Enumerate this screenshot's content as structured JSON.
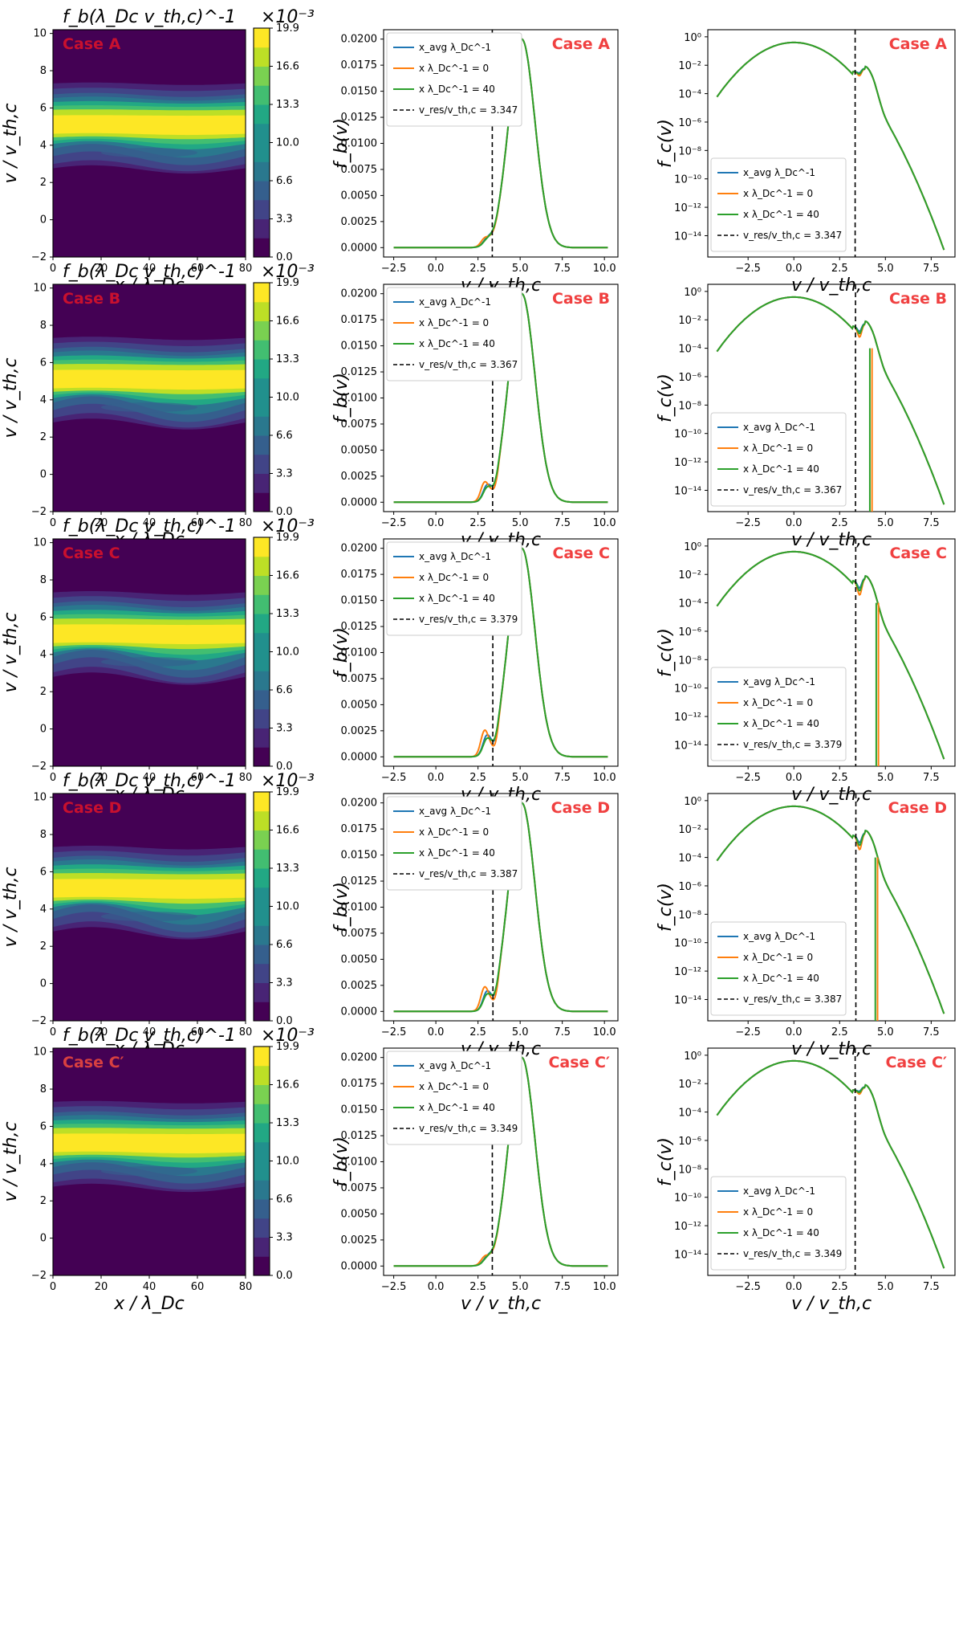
{
  "colors": {
    "blue": "#1f77b4",
    "orange": "#ff7f0e",
    "green": "#2ca02c",
    "case_dark": "#c8102e",
    "case_light": "#f04040",
    "viridis": [
      "#440154",
      "#482475",
      "#414487",
      "#355f8d",
      "#2a788e",
      "#21908d",
      "#22a884",
      "#42be71",
      "#7ad151",
      "#bddf26",
      "#fde725"
    ]
  },
  "figure": {
    "contour_title": "f_b(λ_Dc v_th,c)^-1",
    "contour_scale": "×10⁻³",
    "contour_xlabel": "x / λ_Dc",
    "contour_ylabel": "v / v_th,c",
    "fb_ylabel": "f_b(v)",
    "fc_ylabel": "f_c(v)",
    "v_xlabel": "v / v_th,c",
    "colorbar_ticks": [
      "0.0",
      "3.3",
      "6.6",
      "10.0",
      "13.3",
      "16.6",
      "19.9"
    ],
    "contour_xticks": [
      "0",
      "20",
      "40",
      "60",
      "80"
    ],
    "contour_yticks": [
      "−2",
      "0",
      "2",
      "4",
      "6",
      "8",
      "10"
    ],
    "fb_yticks": [
      "0.0000",
      "0.0025",
      "0.0050",
      "0.0075",
      "0.0100",
      "0.0125",
      "0.0150",
      "0.0175",
      "0.0200"
    ],
    "fb_xticks": [
      "−2.5",
      "0.0",
      "2.5",
      "5.0",
      "7.5",
      "10.0"
    ],
    "fc_xticks": [
      "−2.5",
      "0.0",
      "2.5",
      "5.0",
      "7.5"
    ],
    "fc_yticks": [
      "10⁰",
      "10⁻²",
      "10⁻⁴",
      "10⁻⁶",
      "10⁻⁸",
      "10⁻¹⁰",
      "10⁻¹²",
      "10⁻¹⁴"
    ],
    "legend_labels": [
      "x_avg λ_Dc^-1",
      "x λ_Dc^-1 = 0",
      "x λ_Dc^-1 = 40"
    ],
    "vres_label_prefix": "v_res/v_th,c = "
  },
  "chart_data": [
    {
      "case": "Case A",
      "case_style": "bold",
      "vres": 3.347,
      "vres_text": "3.347",
      "bump_amp": 0.0006,
      "trap_depth": 1,
      "cutoff": null
    },
    {
      "case": "Case B",
      "case_style": "bold",
      "vres": 3.367,
      "vres_text": "3.367",
      "bump_amp": 0.0016,
      "trap_depth": 2,
      "cutoff": 4.15
    },
    {
      "case": "Case C",
      "case_style": "bold",
      "vres": 3.379,
      "vres_text": "3.379",
      "bump_amp": 0.0022,
      "trap_depth": 2.5,
      "cutoff": 4.5
    },
    {
      "case": "Case D",
      "case_style": "bold",
      "vres": 3.387,
      "vres_text": "3.387",
      "bump_amp": 0.002,
      "trap_depth": 2.5,
      "cutoff": 4.45
    },
    {
      "case": "Case C′",
      "case_style": "light",
      "vres": 3.349,
      "vres_text": "3.349",
      "bump_amp": 0.0006,
      "trap_depth": 1,
      "cutoff": null
    }
  ]
}
